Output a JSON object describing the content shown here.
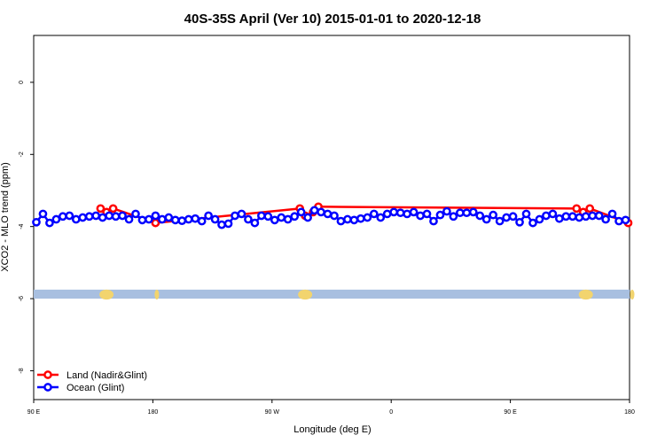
{
  "chart_data": {
    "type": "scatter",
    "title": "40S-35S April (Ver 10)   2015-01-01 to 2020-12-18",
    "xlabel": "Longitude (deg E)",
    "ylabel": "XCO2 - MLO trend (ppm)",
    "x_ticks": [
      {
        "value": 90,
        "label": "90 E"
      },
      {
        "value": 180,
        "label": "180"
      },
      {
        "value": 270,
        "label": "90 W"
      },
      {
        "value": 360,
        "label": "0"
      },
      {
        "value": 450,
        "label": "90 E"
      },
      {
        "value": 540,
        "label": "180"
      }
    ],
    "y_ticks": [
      {
        "value": 0,
        "label": "0"
      },
      {
        "value": -2,
        "label": "-2"
      },
      {
        "value": -4,
        "label": "-4"
      },
      {
        "value": -6,
        "label": "-6"
      },
      {
        "value": -8,
        "label": "-8"
      }
    ],
    "xlim": [
      90,
      540
    ],
    "ylim": [
      -8.8,
      1.3
    ],
    "grid": false,
    "legend_position": "bottom-left",
    "land_band": {
      "y_range": [
        -5.75,
        -6.0
      ],
      "color": "#a8bfe0",
      "land_color": "#f2d46e",
      "land_lon": [
        145,
        183,
        295,
        507,
        542
      ]
    },
    "series": [
      {
        "name": "Land (Nadir&Glint)",
        "color": "#ff0000",
        "x": [
          140.5,
          145,
          150,
          182,
          291,
          295,
          301,
          305,
          500,
          505,
          510,
          539
        ],
        "y": [
          -3.5,
          -3.6,
          -3.5,
          -3.9,
          -3.5,
          -3.7,
          -3.6,
          -3.45,
          -3.5,
          -3.6,
          -3.5,
          -3.9
        ]
      },
      {
        "name": "Ocean (Glint)",
        "color": "#0000ff",
        "x": [
          92,
          97,
          102,
          107,
          112,
          117,
          122,
          127,
          132,
          137,
          142,
          147,
          152,
          157,
          162,
          167,
          172,
          177,
          182,
          187,
          192,
          197,
          202,
          207,
          212,
          217,
          222,
          227,
          232,
          237,
          242,
          247,
          252,
          257,
          262,
          267,
          272,
          277,
          282,
          287,
          292,
          297,
          302,
          307,
          312,
          317,
          322,
          327,
          332,
          337,
          342,
          347,
          352,
          357,
          362,
          367,
          372,
          377,
          382,
          387,
          392,
          397,
          402,
          407,
          412,
          417,
          422,
          427,
          432,
          437,
          442,
          447,
          452,
          457,
          462,
          467,
          472,
          477,
          482,
          487,
          492,
          497,
          502,
          507,
          512,
          517,
          522,
          527,
          532,
          537
        ],
        "y": [
          -3.88,
          -3.65,
          -3.9,
          -3.8,
          -3.72,
          -3.7,
          -3.8,
          -3.75,
          -3.72,
          -3.7,
          -3.75,
          -3.7,
          -3.72,
          -3.7,
          -3.8,
          -3.65,
          -3.82,
          -3.8,
          -3.7,
          -3.8,
          -3.75,
          -3.82,
          -3.84,
          -3.8,
          -3.78,
          -3.85,
          -3.7,
          -3.8,
          -3.95,
          -3.92,
          -3.7,
          -3.65,
          -3.8,
          -3.9,
          -3.7,
          -3.72,
          -3.82,
          -3.75,
          -3.8,
          -3.72,
          -3.6,
          -3.75,
          -3.55,
          -3.6,
          -3.65,
          -3.7,
          -3.85,
          -3.8,
          -3.82,
          -3.78,
          -3.75,
          -3.65,
          -3.75,
          -3.65,
          -3.6,
          -3.62,
          -3.65,
          -3.6,
          -3.7,
          -3.65,
          -3.85,
          -3.68,
          -3.58,
          -3.72,
          -3.62,
          -3.62,
          -3.6,
          -3.7,
          -3.8,
          -3.68,
          -3.85,
          -3.75,
          -3.72,
          -3.88,
          -3.65,
          -3.9,
          -3.8,
          -3.7,
          -3.65,
          -3.78,
          -3.72,
          -3.72,
          -3.75,
          -3.72,
          -3.7,
          -3.7,
          -3.8,
          -3.65,
          -3.85,
          -3.82
        ]
      }
    ]
  }
}
